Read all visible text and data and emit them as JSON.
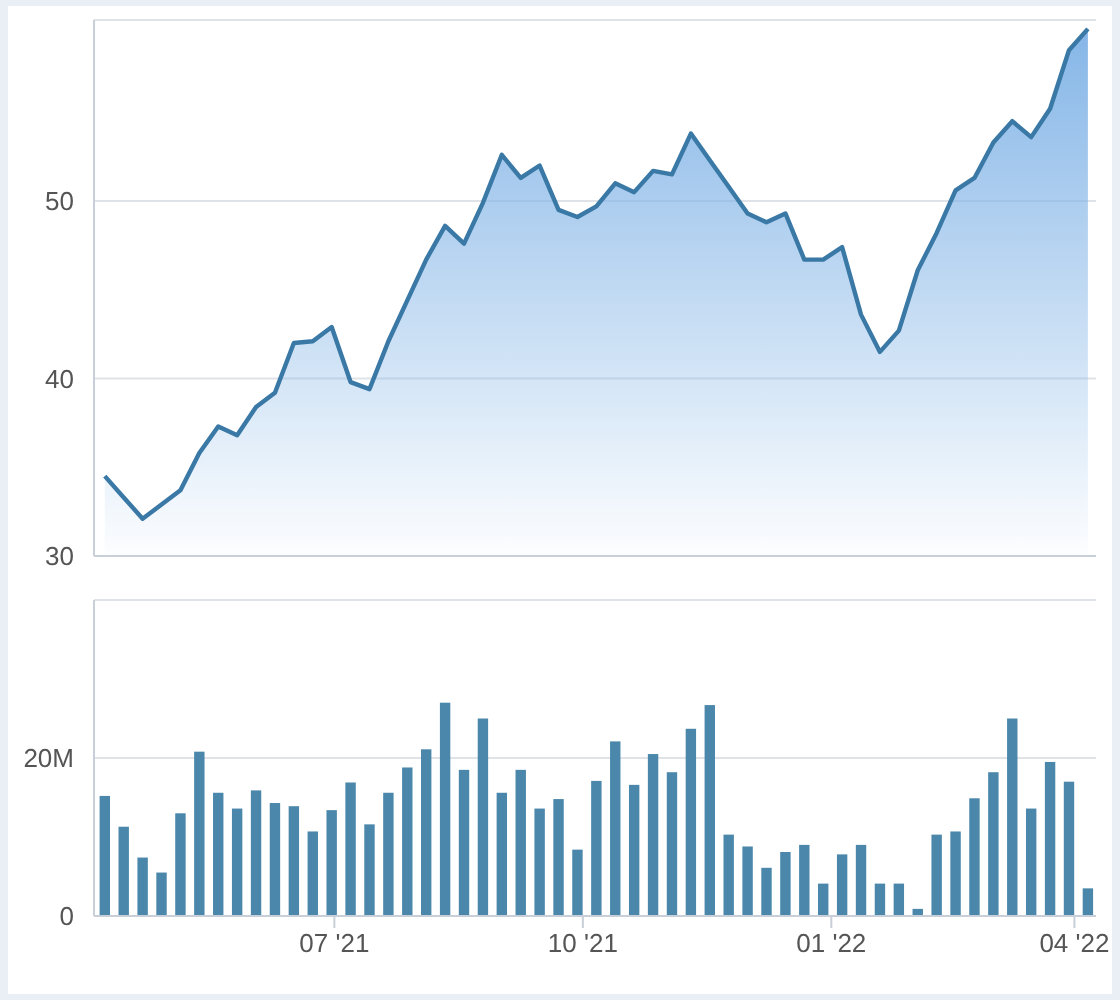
{
  "chart_data": [
    {
      "type": "area",
      "x": [
        "2021-04-07",
        "2021-04-14",
        "2021-04-21",
        "2021-04-28",
        "2021-05-05",
        "2021-05-12",
        "2021-05-19",
        "2021-05-26",
        "2021-06-02",
        "2021-06-09",
        "2021-06-16",
        "2021-06-23",
        "2021-06-30",
        "2021-07-07",
        "2021-07-14",
        "2021-07-21",
        "2021-07-28",
        "2021-08-04",
        "2021-08-11",
        "2021-08-18",
        "2021-08-25",
        "2021-09-01",
        "2021-09-08",
        "2021-09-15",
        "2021-09-22",
        "2021-09-29",
        "2021-10-06",
        "2021-10-13",
        "2021-10-20",
        "2021-10-27",
        "2021-11-03",
        "2021-11-10",
        "2021-11-17",
        "2021-11-24",
        "2021-12-01",
        "2021-12-08",
        "2021-12-15",
        "2021-12-22",
        "2021-12-29",
        "2022-01-05",
        "2022-01-12",
        "2022-01-19",
        "2022-01-26",
        "2022-02-02",
        "2022-02-09",
        "2022-02-16",
        "2022-02-23",
        "2022-03-02",
        "2022-03-09",
        "2022-03-16",
        "2022-03-23",
        "2022-03-30",
        "2022-04-06"
      ],
      "series": [
        {
          "color": "#3a78a6",
          "values": [
            34.5,
            33.3,
            32.1,
            32.9,
            33.7,
            35.8,
            37.3,
            36.8,
            38.4,
            39.2,
            42.0,
            42.1,
            42.9,
            39.8,
            39.4,
            42.1,
            44.4,
            46.7,
            48.6,
            47.6,
            49.9,
            52.6,
            51.3,
            52.0,
            49.5,
            49.1,
            49.7,
            51.0,
            50.5,
            51.7,
            51.5,
            53.8,
            52.3,
            50.8,
            49.3,
            48.8,
            49.3,
            46.7,
            46.7,
            47.4,
            43.6,
            41.5,
            42.7,
            46.1,
            48.2,
            50.6,
            51.3,
            53.3,
            54.5,
            53.6,
            55.2,
            58.5,
            59.7
          ]
        }
      ],
      "xlim": [
        "2021-04-03",
        "2022-04-09"
      ],
      "ylim": [
        30,
        60.2
      ],
      "yticks": [
        30,
        40,
        50
      ],
      "grid": "y",
      "tick_labels": "y"
    },
    {
      "type": "bar",
      "x": [
        "2021-04-07",
        "2021-04-14",
        "2021-04-21",
        "2021-04-28",
        "2021-05-05",
        "2021-05-12",
        "2021-05-19",
        "2021-05-26",
        "2021-06-02",
        "2021-06-09",
        "2021-06-16",
        "2021-06-23",
        "2021-06-30",
        "2021-07-07",
        "2021-07-14",
        "2021-07-21",
        "2021-07-28",
        "2021-08-04",
        "2021-08-11",
        "2021-08-18",
        "2021-08-25",
        "2021-09-01",
        "2021-09-08",
        "2021-09-15",
        "2021-09-22",
        "2021-09-29",
        "2021-10-06",
        "2021-10-13",
        "2021-10-20",
        "2021-10-27",
        "2021-11-03",
        "2021-11-10",
        "2021-11-17",
        "2021-11-24",
        "2021-12-01",
        "2021-12-08",
        "2021-12-15",
        "2021-12-22",
        "2021-12-29",
        "2022-01-05",
        "2022-01-12",
        "2022-01-19",
        "2022-01-26",
        "2022-02-02",
        "2022-02-09",
        "2022-02-16",
        "2022-02-23",
        "2022-03-02",
        "2022-03-09",
        "2022-03-16",
        "2022-03-23",
        "2022-03-30",
        "2022-04-06"
      ],
      "series": [
        {
          "color": "#4a87aa",
          "values": [
            15.2,
            11.3,
            7.4,
            5.5,
            13.0,
            20.8,
            15.6,
            13.6,
            15.9,
            14.3,
            13.9,
            10.7,
            13.4,
            16.9,
            11.6,
            15.6,
            18.8,
            21.1,
            27.0,
            18.5,
            25.0,
            15.6,
            18.5,
            13.6,
            14.8,
            8.4,
            17.1,
            22.1,
            16.6,
            20.5,
            18.2,
            23.7,
            26.7,
            10.3,
            8.8,
            6.1,
            8.1,
            9.0,
            4.1,
            7.8,
            9.0,
            4.1,
            4.1,
            0.9,
            10.3,
            10.7,
            14.9,
            18.2,
            25.0,
            13.6,
            19.5,
            17.0,
            3.5
          ]
        }
      ],
      "xlim": [
        "2021-04-03",
        "2022-04-09"
      ],
      "xticks": [
        {
          "value": "2021-07-01",
          "label": "07 '21"
        },
        {
          "value": "2021-10-01",
          "label": "10 '21"
        },
        {
          "value": "2022-01-01",
          "label": "01 '22"
        },
        {
          "value": "2022-04-01",
          "label": "04 '22"
        }
      ],
      "ylim": [
        0,
        40
      ],
      "yticks": [
        0,
        {
          "value": 20,
          "label": "20M"
        }
      ],
      "grid": "y"
    }
  ]
}
